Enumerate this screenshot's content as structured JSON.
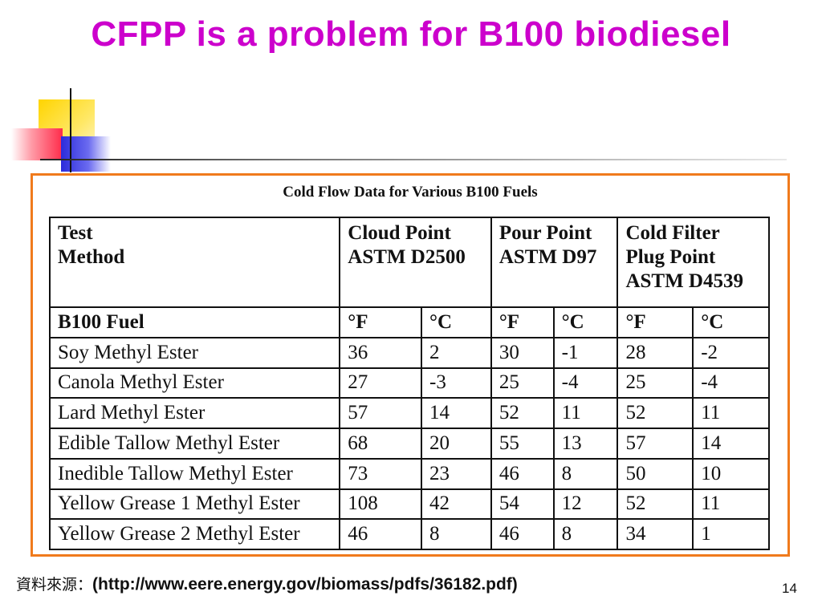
{
  "slide": {
    "title": "CFPP is a problem for B100 biodiesel",
    "page_number": "14"
  },
  "table": {
    "caption": "Cold Flow Data for Various B100 Fuels",
    "header": {
      "test_method": [
        "Test",
        "Method"
      ],
      "cloud_point": [
        "Cloud Point",
        "ASTM D2500"
      ],
      "pour_point": [
        "Pour Point",
        "ASTM D97"
      ],
      "cfpp": [
        "Cold Filter",
        "Plug Point",
        "ASTM D4539"
      ]
    },
    "subheader": {
      "fuel": "B100 Fuel",
      "units": [
        "°F",
        "°C",
        "°F",
        "°C",
        "°F",
        "°C"
      ]
    },
    "rows": [
      {
        "fuel": "Soy Methyl Ester",
        "values": [
          "36",
          "2",
          "30",
          "-1",
          "28",
          "-2"
        ]
      },
      {
        "fuel": "Canola Methyl Ester",
        "values": [
          "27",
          "-3",
          "25",
          "-4",
          "25",
          "-4"
        ]
      },
      {
        "fuel": "Lard Methyl Ester",
        "values": [
          "57",
          "14",
          "52",
          "11",
          "52",
          "11"
        ]
      },
      {
        "fuel": "Edible Tallow Methyl Ester",
        "values": [
          "68",
          "20",
          "55",
          "13",
          "57",
          "14"
        ]
      },
      {
        "fuel": "Inedible Tallow Methyl Ester",
        "values": [
          "73",
          "23",
          "46",
          "8",
          "50",
          "10"
        ]
      },
      {
        "fuel": "Yellow Grease 1 Methyl Ester",
        "values": [
          "108",
          "42",
          "54",
          "12",
          "52",
          "11"
        ]
      },
      {
        "fuel": "Yellow Grease 2 Methyl Ester",
        "values": [
          "46",
          "8",
          "46",
          "8",
          "34",
          "1"
        ]
      }
    ]
  },
  "source": {
    "label": "資料來源：",
    "url": "(http://www.eere.energy.gov/biomass/pdfs/36182.pdf)"
  },
  "colors": {
    "title": "#cc00cc",
    "frame_border": "#f07a1c"
  }
}
